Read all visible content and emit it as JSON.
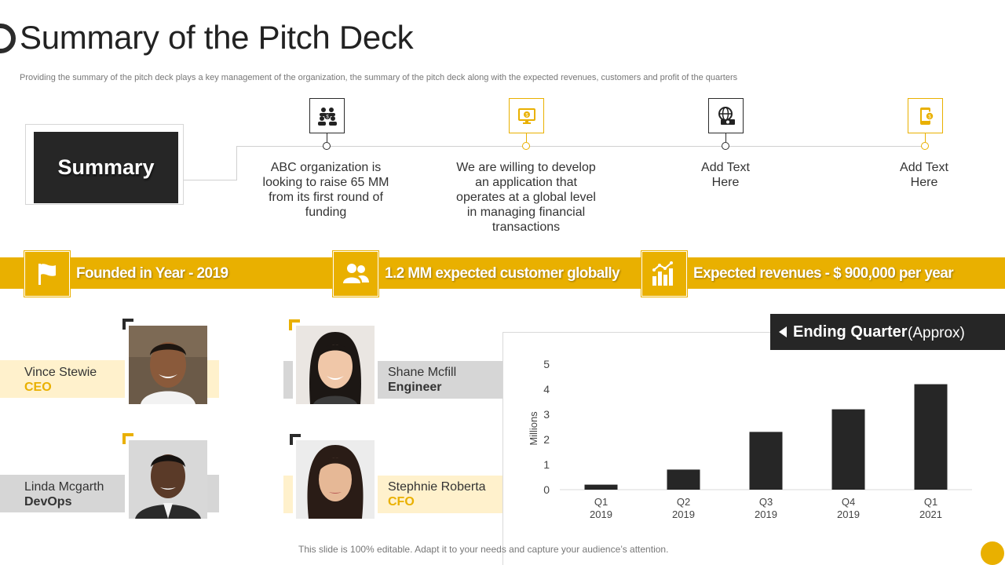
{
  "header": {
    "title": "Summary of the Pitch Deck",
    "subtitle": "Providing the summary of the pitch deck plays a key management of the organization, the summary of the pitch deck along with the expected revenues, customers and profit of the quarters"
  },
  "summary_label": "Summary",
  "steps": [
    {
      "icon": "people-money-icon",
      "style": "dark",
      "text": "ABC organization is looking to raise 65 MM from its first round of funding"
    },
    {
      "icon": "monitor-money-icon",
      "style": "gold",
      "text": "We are willing to  develop an application that operates at a global level in managing financial transactions"
    },
    {
      "icon": "globe-cash-icon",
      "style": "dark",
      "text": "Add Text Here"
    },
    {
      "icon": "phone-coin-icon",
      "style": "gold",
      "text": "Add Text Here"
    }
  ],
  "highlights": [
    {
      "icon": "flag-icon",
      "text": "Founded in Year - 2019"
    },
    {
      "icon": "users-icon",
      "text": "1.2 MM expected customer globally"
    },
    {
      "icon": "bar-growth-icon",
      "text": "Expected revenues - $ 900,000 per year"
    }
  ],
  "team": [
    {
      "name": "Vince Stewie",
      "role": "CEO"
    },
    {
      "name": "Shane Mcfill",
      "role": "Engineer"
    },
    {
      "name": "Linda Mcgarth",
      "role": "DevOps"
    },
    {
      "name": "Stephnie Roberta",
      "role": "CFO"
    }
  ],
  "ending_quarter": {
    "label": "Ending Quarter",
    "suffix": "(Approx)"
  },
  "chart_data": {
    "type": "bar",
    "categories": [
      [
        "Q1",
        "2019"
      ],
      [
        "Q2",
        "2019"
      ],
      [
        "Q3",
        "2019"
      ],
      [
        "Q4",
        "2019"
      ],
      [
        "Q1",
        "2021"
      ]
    ],
    "values": [
      0.2,
      0.8,
      2.3,
      3.2,
      4.2
    ],
    "ylabel": "Millions",
    "ylim": [
      0,
      5
    ],
    "yticks": [
      0,
      1,
      2,
      3,
      4,
      5
    ],
    "grid": false,
    "bar_color": "#262626"
  },
  "footer": "This slide is 100% editable. Adapt it to your needs and capture your audience’s attention.",
  "colors": {
    "accent": "#e9b000",
    "dark": "#262626",
    "cream": "#fff1cc",
    "grey": "#d6d6d6"
  }
}
